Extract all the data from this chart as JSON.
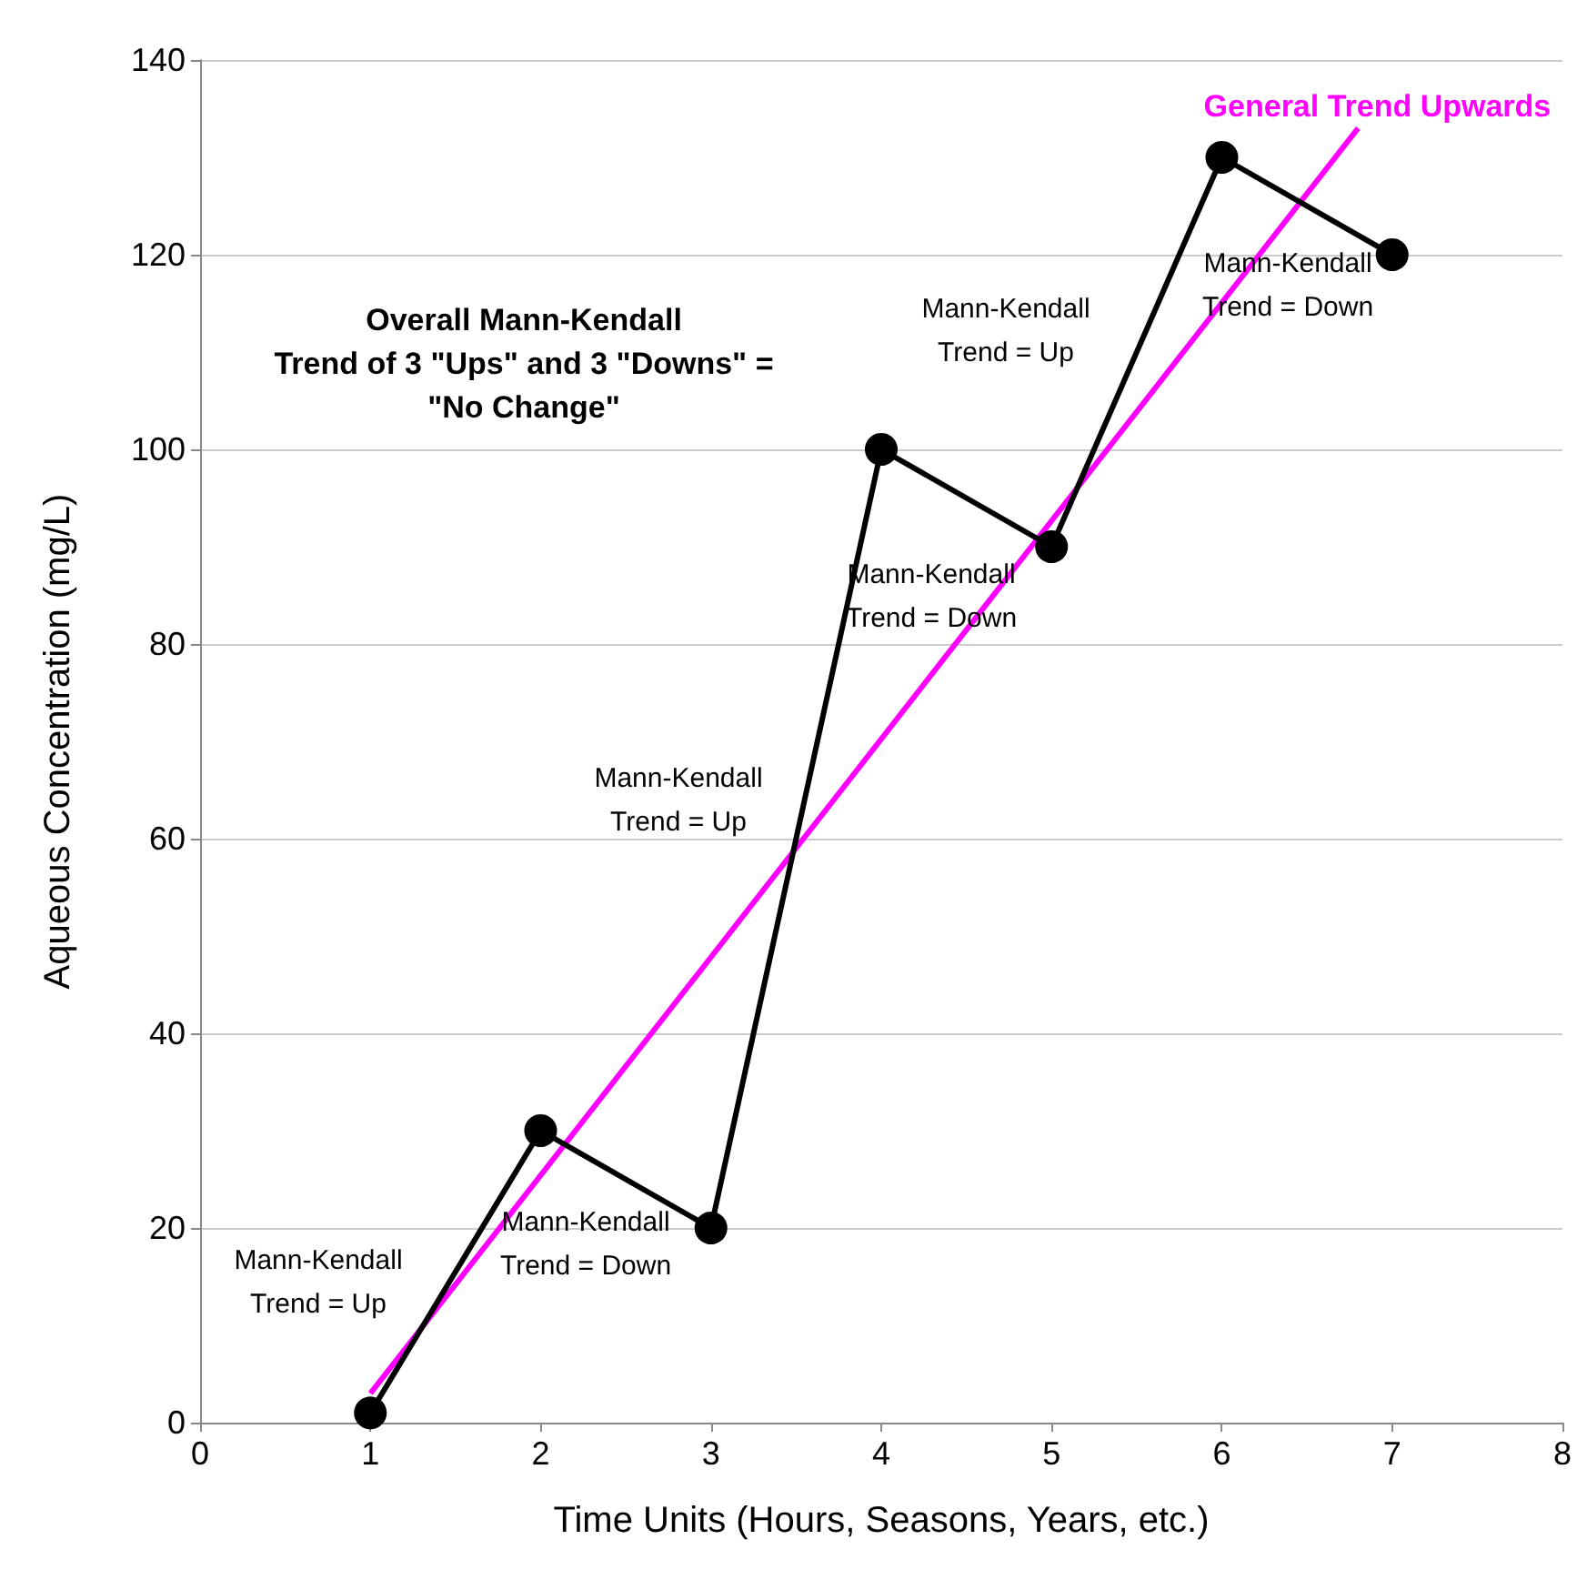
{
  "chart_data": {
    "type": "line",
    "xlabel": "Time Units (Hours, Seasons, Years, etc.)",
    "ylabel": "Aqueous Concentration (mg/L)",
    "x": [
      1,
      2,
      3,
      4,
      5,
      6,
      7
    ],
    "series": [
      {
        "color": "#000000",
        "values": [
          1,
          30,
          20,
          100,
          90,
          130,
          120
        ],
        "marker": "circle"
      },
      {
        "name": "General Trend Upwards",
        "color": "#ff00ff",
        "x": [
          1,
          6.8
        ],
        "values": [
          3,
          133
        ],
        "marker": "none"
      }
    ],
    "xlim": [
      0,
      8
    ],
    "xticks": [
      0,
      1,
      2,
      3,
      4,
      5,
      6,
      7,
      8
    ],
    "ylim": [
      0,
      140
    ],
    "yticks": [
      0,
      20,
      40,
      60,
      80,
      100,
      120,
      140
    ],
    "grid": "y",
    "legend": false,
    "annotations": [
      "Overall Mann-Kendall\nTrend of 3 \"Ups\" and 3 \"Downs\" =\n\"No Change\"",
      "Mann-Kendall\nTrend = Up",
      "Mann-Kendall\nTrend = Down",
      "Mann-Kendall\nTrend = Up",
      "Mann-Kendall\nTrend = Down",
      "Mann-Kendall\nTrend = Up",
      "Mann-Kendall\nTrend = Down"
    ]
  }
}
